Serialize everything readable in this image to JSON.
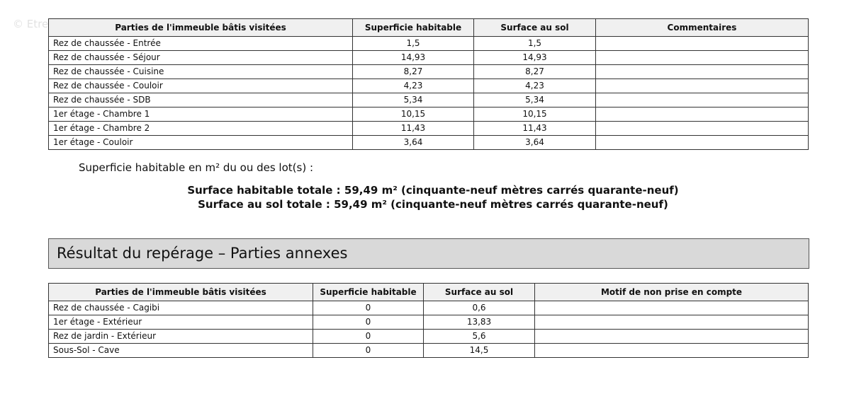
{
  "watermark": "© EtreProprio.com",
  "table1": {
    "headers": [
      "Parties de l'immeuble bâtis visitées",
      "Superficie habitable",
      "Surface au sol",
      "Commentaires"
    ],
    "rows": [
      [
        "Rez de chaussée - Entrée",
        "1,5",
        "1,5",
        ""
      ],
      [
        "Rez de chaussée - Séjour",
        "14,93",
        "14,93",
        ""
      ],
      [
        "Rez de chaussée - Cuisine",
        "8,27",
        "8,27",
        ""
      ],
      [
        "Rez de chaussée - Couloir",
        "4,23",
        "4,23",
        ""
      ],
      [
        "Rez de chaussée - SDB",
        "5,34",
        "5,34",
        ""
      ],
      [
        "1er étage - Chambre 1",
        "10,15",
        "10,15",
        ""
      ],
      [
        "1er étage - Chambre 2",
        "11,43",
        "11,43",
        ""
      ],
      [
        "1er étage - Couloir",
        "3,64",
        "3,64",
        ""
      ]
    ]
  },
  "subtitle": "Superficie habitable en m² du ou des lot(s) :",
  "total_habitable": "Surface habitable totale : 59,49 m² (cinquante-neuf mètres carrés quarante-neuf)",
  "total_sol": "Surface au sol totale : 59,49 m² (cinquante-neuf mètres carrés quarante-neuf)",
  "section_title": "Résultat du repérage – Parties annexes",
  "table2": {
    "headers": [
      "Parties de l'immeuble bâtis visitées",
      "Superficie habitable",
      "Surface au sol",
      "Motif de non prise en compte"
    ],
    "rows": [
      [
        "Rez de chaussée - Cagibi",
        "0",
        "0,6",
        ""
      ],
      [
        "1er étage - Extérieur",
        "0",
        "13,83",
        ""
      ],
      [
        "Rez de jardin - Extérieur",
        "0",
        "5,6",
        ""
      ],
      [
        "Sous-Sol - Cave",
        "0",
        "14,5",
        ""
      ]
    ]
  }
}
